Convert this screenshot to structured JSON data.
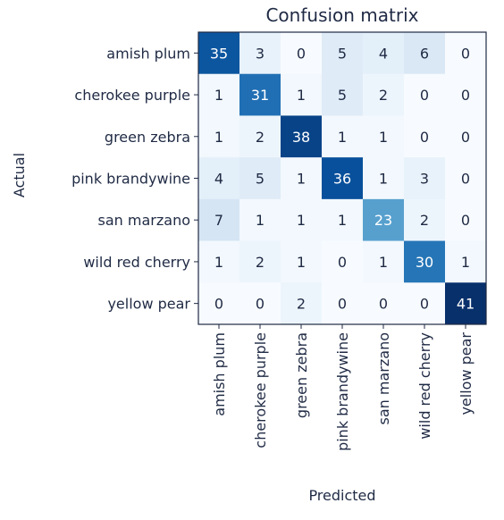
{
  "chart_data": {
    "type": "heatmap",
    "title": "Confusion matrix",
    "xlabel": "Predicted",
    "ylabel": "Actual",
    "row_labels": [
      "amish plum",
      "cherokee purple",
      "green zebra",
      "pink brandywine",
      "san marzano",
      "wild red cherry",
      "yellow pear"
    ],
    "col_labels": [
      "amish plum",
      "cherokee purple",
      "green zebra",
      "pink brandywine",
      "san marzano",
      "wild red cherry",
      "yellow pear"
    ],
    "values": [
      [
        35,
        3,
        0,
        5,
        4,
        6,
        0
      ],
      [
        1,
        31,
        1,
        5,
        2,
        0,
        0
      ],
      [
        1,
        2,
        38,
        1,
        1,
        0,
        0
      ],
      [
        4,
        5,
        1,
        36,
        1,
        3,
        0
      ],
      [
        7,
        1,
        1,
        1,
        23,
        2,
        0
      ],
      [
        1,
        2,
        1,
        0,
        1,
        30,
        1
      ],
      [
        0,
        0,
        2,
        0,
        0,
        0,
        41
      ]
    ],
    "colormap": "Blues",
    "vmin": 0,
    "vmax": 41
  }
}
